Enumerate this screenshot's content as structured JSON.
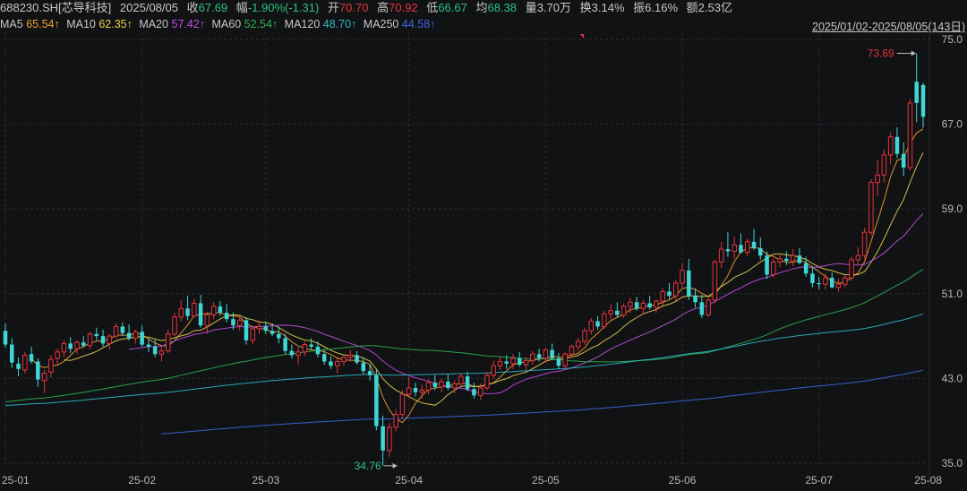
{
  "stats": {
    "code_name": "688230.SH[芯导科技]",
    "date": "2025/08/05",
    "close_label": "收",
    "close_value": "67.69",
    "change_label": "幅",
    "change_value": "-1.90%(-1.31)",
    "open_label": "开",
    "open_value": "70.70",
    "high_label": "高",
    "high_value": "70.92",
    "low_label": "低",
    "low_value": "66.67",
    "avg_label": "均",
    "avg_value": "68.38",
    "volume_label": "量",
    "volume_value": "3.70万",
    "turnover_label": "换",
    "turnover_value": "3.14%",
    "amplitude_label": "振",
    "amplitude_value": "6.16%",
    "amount_label": "额",
    "amount_value": "2.53亿"
  },
  "ma": [
    {
      "label": "MA5",
      "value": "65.54↑",
      "color": "#f0a030"
    },
    {
      "label": "MA10",
      "value": "62.35↑",
      "color": "#e8d050"
    },
    {
      "label": "MA20",
      "value": "57.42↑",
      "color": "#c050e0"
    },
    {
      "label": "MA60",
      "value": "52.54↑",
      "color": "#30b050"
    },
    {
      "label": "MA120",
      "value": "48.70↑",
      "color": "#2eb8c8"
    },
    {
      "label": "MA250",
      "value": "44.58↑",
      "color": "#3a6ae0"
    }
  ],
  "date_range": "2025/01/02-2025/08/05(143日)",
  "colors": {
    "up": "#e5343e",
    "down": "#3fd6d6",
    "bg": "#111214",
    "grid": "#2a2c30",
    "axis_text": "#b8b8b8"
  },
  "chart_data": {
    "type": "candlestick",
    "ylim": [
      35.0,
      75.0
    ],
    "y_ticks": [
      "75.0",
      "67.0",
      "59.0",
      "51.0",
      "43.0",
      "35.0"
    ],
    "x_ticks": [
      "25-01",
      "25-02",
      "25-03",
      "25-04",
      "25-05",
      "25-06",
      "25-07",
      "25-08"
    ],
    "x_tick_index": [
      0,
      21,
      40,
      62,
      83,
      104,
      125,
      142
    ],
    "annotations": {
      "max": "73.69",
      "min": "34.76"
    },
    "ohlc": [
      [
        47.5,
        48.2,
        45.9,
        46.2
      ],
      [
        46.2,
        46.8,
        44.0,
        44.5
      ],
      [
        44.4,
        45.0,
        43.2,
        43.9
      ],
      [
        43.8,
        45.5,
        43.5,
        45.2
      ],
      [
        45.3,
        46.0,
        44.4,
        44.6
      ],
      [
        44.6,
        44.9,
        42.2,
        42.9
      ],
      [
        42.8,
        43.8,
        41.6,
        43.5
      ],
      [
        43.6,
        45.2,
        43.1,
        44.8
      ],
      [
        44.9,
        45.8,
        44.3,
        45.5
      ],
      [
        45.5,
        46.6,
        45.0,
        46.3
      ],
      [
        46.3,
        46.9,
        45.4,
        45.8
      ],
      [
        45.8,
        46.6,
        45.3,
        46.4
      ],
      [
        46.4,
        47.0,
        45.9,
        46.1
      ],
      [
        46.1,
        47.4,
        45.8,
        47.2
      ],
      [
        47.2,
        47.8,
        46.6,
        47.0
      ],
      [
        47.0,
        47.6,
        46.0,
        46.3
      ],
      [
        46.3,
        47.2,
        45.7,
        47.0
      ],
      [
        47.0,
        48.2,
        46.8,
        47.9
      ],
      [
        47.9,
        48.3,
        47.0,
        47.3
      ],
      [
        47.3,
        48.1,
        46.6,
        46.8
      ],
      [
        46.8,
        47.6,
        46.3,
        47.4
      ],
      [
        47.4,
        48.0,
        46.0,
        46.2
      ],
      [
        46.2,
        46.8,
        45.5,
        46.0
      ],
      [
        46.0,
        46.7,
        45.0,
        45.3
      ],
      [
        45.3,
        46.0,
        44.6,
        45.6
      ],
      [
        45.6,
        47.6,
        45.4,
        47.2
      ],
      [
        47.2,
        49.2,
        47.0,
        48.8
      ],
      [
        48.8,
        50.4,
        48.4,
        49.6
      ],
      [
        49.6,
        50.8,
        48.5,
        48.9
      ],
      [
        48.9,
        50.5,
        48.8,
        50.1
      ],
      [
        50.1,
        50.9,
        47.8,
        48.0
      ],
      [
        48.0,
        49.3,
        47.2,
        49.0
      ],
      [
        49.0,
        50.2,
        48.6,
        49.8
      ],
      [
        49.8,
        50.3,
        48.9,
        49.2
      ],
      [
        49.2,
        50.0,
        48.3,
        48.6
      ],
      [
        48.6,
        49.2,
        47.6,
        48.0
      ],
      [
        48.0,
        48.8,
        47.5,
        48.5
      ],
      [
        48.5,
        48.8,
        46.2,
        46.6
      ],
      [
        46.6,
        47.9,
        46.2,
        47.7
      ],
      [
        47.7,
        48.5,
        47.2,
        47.9
      ],
      [
        47.9,
        48.4,
        47.2,
        47.5
      ],
      [
        47.5,
        48.2,
        47.0,
        47.2
      ],
      [
        47.2,
        47.9,
        46.3,
        46.8
      ],
      [
        46.8,
        47.2,
        45.3,
        45.6
      ],
      [
        45.6,
        46.2,
        44.9,
        45.2
      ],
      [
        45.2,
        45.9,
        44.3,
        45.5
      ],
      [
        45.5,
        46.5,
        45.1,
        46.2
      ],
      [
        46.2,
        46.8,
        45.7,
        46.0
      ],
      [
        46.0,
        46.5,
        45.0,
        45.3
      ],
      [
        45.3,
        45.8,
        44.3,
        44.6
      ],
      [
        44.6,
        45.1,
        43.9,
        44.2
      ],
      [
        44.2,
        44.9,
        43.5,
        44.6
      ],
      [
        44.6,
        45.2,
        44.2,
        45.0
      ],
      [
        45.0,
        45.7,
        44.6,
        45.2
      ],
      [
        45.2,
        45.6,
        44.3,
        44.5
      ],
      [
        44.5,
        45.0,
        43.4,
        43.7
      ],
      [
        43.7,
        44.4,
        42.8,
        43.3
      ],
      [
        43.3,
        43.9,
        38.1,
        38.5
      ],
      [
        38.5,
        39.5,
        34.76,
        36.2
      ],
      [
        36.2,
        38.8,
        35.6,
        38.4
      ],
      [
        38.4,
        40.1,
        38.0,
        39.6
      ],
      [
        39.6,
        41.9,
        39.2,
        41.5
      ],
      [
        41.5,
        43.1,
        41.2,
        42.1
      ],
      [
        42.1,
        42.6,
        41.3,
        41.7
      ],
      [
        41.7,
        42.4,
        41.1,
        41.9
      ],
      [
        41.9,
        42.9,
        41.5,
        42.6
      ],
      [
        42.6,
        43.3,
        41.9,
        42.2
      ],
      [
        42.2,
        43.0,
        41.7,
        42.7
      ],
      [
        42.7,
        43.4,
        41.9,
        42.1
      ],
      [
        42.1,
        42.8,
        41.6,
        42.5
      ],
      [
        42.5,
        43.5,
        42.3,
        43.2
      ],
      [
        43.2,
        43.6,
        41.8,
        42.0
      ],
      [
        42.0,
        42.6,
        41.1,
        41.4
      ],
      [
        41.4,
        42.5,
        41.0,
        42.1
      ],
      [
        42.1,
        43.6,
        41.9,
        43.3
      ],
      [
        43.3,
        44.7,
        43.0,
        44.2
      ],
      [
        44.2,
        45.1,
        43.8,
        44.6
      ],
      [
        44.6,
        45.2,
        43.9,
        44.4
      ],
      [
        44.4,
        45.3,
        43.9,
        44.9
      ],
      [
        44.9,
        45.5,
        44.1,
        44.3
      ],
      [
        44.3,
        45.0,
        43.8,
        44.7
      ],
      [
        44.7,
        45.6,
        44.3,
        45.3
      ],
      [
        45.3,
        45.8,
        44.6,
        44.9
      ],
      [
        44.9,
        45.9,
        44.5,
        45.7
      ],
      [
        45.7,
        46.3,
        44.8,
        44.9
      ],
      [
        44.9,
        45.4,
        43.9,
        44.2
      ],
      [
        44.2,
        45.5,
        44.0,
        45.3
      ],
      [
        45.3,
        46.2,
        45.0,
        46.0
      ],
      [
        46.0,
        46.8,
        45.6,
        46.5
      ],
      [
        46.5,
        47.8,
        46.2,
        47.5
      ],
      [
        47.5,
        48.7,
        47.1,
        48.4
      ],
      [
        48.4,
        48.9,
        47.6,
        47.9
      ],
      [
        47.9,
        49.4,
        47.7,
        49.1
      ],
      [
        49.1,
        50.0,
        48.6,
        49.4
      ],
      [
        49.4,
        50.2,
        48.8,
        49.0
      ],
      [
        49.0,
        50.1,
        48.7,
        49.8
      ],
      [
        49.8,
        50.6,
        49.2,
        50.2
      ],
      [
        50.2,
        50.7,
        49.4,
        49.6
      ],
      [
        49.6,
        50.4,
        49.1,
        50.1
      ],
      [
        50.1,
        50.8,
        49.5,
        49.7
      ],
      [
        49.7,
        50.5,
        49.2,
        50.3
      ],
      [
        50.3,
        51.5,
        49.9,
        51.2
      ],
      [
        51.2,
        52.0,
        50.5,
        50.8
      ],
      [
        50.8,
        52.3,
        50.3,
        52.0
      ],
      [
        52.0,
        53.9,
        51.6,
        53.2
      ],
      [
        53.2,
        54.3,
        50.4,
        50.8
      ],
      [
        50.8,
        51.5,
        49.7,
        50.2
      ],
      [
        50.2,
        50.9,
        48.7,
        49.0
      ],
      [
        49.0,
        50.6,
        48.8,
        50.4
      ],
      [
        50.4,
        54.2,
        50.1,
        54.0
      ],
      [
        54.0,
        55.9,
        53.4,
        55.2
      ],
      [
        55.2,
        56.8,
        54.5,
        55.0
      ],
      [
        55.0,
        56.4,
        54.3,
        55.6
      ],
      [
        55.6,
        56.7,
        54.8,
        54.9
      ],
      [
        54.9,
        56.2,
        54.6,
        55.9
      ],
      [
        55.9,
        57.1,
        55.1,
        55.3
      ],
      [
        55.3,
        56.3,
        54.2,
        54.6
      ],
      [
        54.6,
        55.0,
        52.4,
        52.8
      ],
      [
        52.8,
        54.3,
        52.5,
        54.0
      ],
      [
        54.0,
        54.8,
        53.5,
        54.3
      ],
      [
        54.3,
        55.0,
        53.7,
        54.1
      ],
      [
        54.1,
        55.2,
        53.6,
        54.6
      ],
      [
        54.6,
        55.3,
        53.8,
        53.9
      ],
      [
        53.9,
        54.5,
        52.6,
        52.9
      ],
      [
        52.9,
        53.6,
        51.6,
        52.0
      ],
      [
        52.0,
        52.6,
        51.4,
        51.9
      ],
      [
        51.9,
        52.9,
        51.4,
        52.5
      ],
      [
        52.5,
        53.0,
        51.5,
        51.6
      ],
      [
        51.6,
        52.4,
        51.2,
        51.9
      ],
      [
        51.9,
        52.8,
        51.6,
        52.5
      ],
      [
        52.5,
        54.5,
        52.2,
        54.2
      ],
      [
        54.2,
        55.4,
        53.7,
        54.6
      ],
      [
        54.6,
        57.2,
        54.3,
        56.8
      ],
      [
        56.8,
        61.8,
        56.5,
        61.5
      ],
      [
        61.5,
        63.6,
        60.2,
        62.2
      ],
      [
        62.2,
        64.6,
        61.5,
        64.1
      ],
      [
        64.1,
        66.2,
        63.2,
        65.8
      ],
      [
        65.8,
        66.7,
        63.8,
        64.2
      ],
      [
        64.2,
        65.3,
        62.1,
        62.9
      ],
      [
        62.9,
        69.4,
        62.6,
        69.0
      ],
      [
        71.0,
        73.69,
        67.2,
        69.0
      ],
      [
        70.7,
        70.92,
        66.67,
        67.69
      ]
    ]
  }
}
